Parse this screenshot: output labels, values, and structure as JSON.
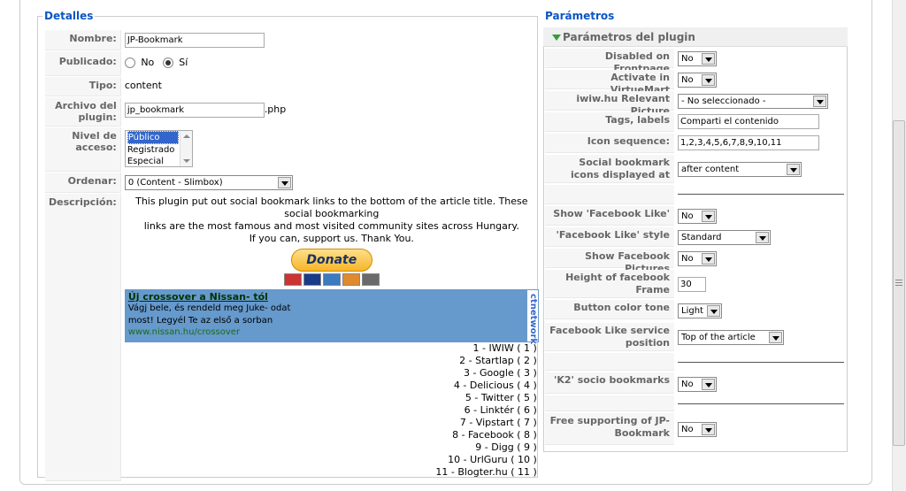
{
  "details": {
    "legend": "Detalles",
    "name_label": "Nombre:",
    "name_value": "JP-Bookmark",
    "published_label": "Publicado:",
    "published_no": "No",
    "published_yes": "Sí",
    "type_label": "Tipo:",
    "type_value": "content",
    "file_label": "Archivo del plugin:",
    "file_value": "jp_bookmark",
    "file_ext": ".php",
    "access_label": "Nivel de acceso:",
    "access_options": [
      "Público",
      "Registrado",
      "Especial"
    ],
    "order_label": "Ordenar:",
    "order_value": "0 (Content - Slimbox)",
    "desc_label": "Descripción:",
    "desc_line1": "This plugin put out social bookmark links to the bottom of the article title. These social bookmarking",
    "desc_line2": "links are the most famous and most visited community sites across Hungary.",
    "desc_line3": "If you can, support us. Thank You.",
    "donate_label": "Donate",
    "ad": {
      "title": "Új crossover a Nissan- tól",
      "line1": "Vágj bele, és rendeld meg Juke- odat",
      "line2": "most! Legyél Te az első a sorban",
      "url": "www.nissan.hu/crossover",
      "side": "ctnetwork"
    },
    "bookmarks": [
      "1 - IWIW ( 1 )",
      "2 - Startlap ( 2 )",
      "3 - Google ( 3 )",
      "4 - Delicious ( 4 )",
      "5 - Twitter ( 5 )",
      "6 - Linktér ( 6 )",
      "7 - Vipstart ( 7 )",
      "8 - Facebook ( 8 )",
      "9 - Digg ( 9 )",
      "10 - UrlGuru ( 10 )",
      "11 - Blogter.hu ( 11 )"
    ]
  },
  "params": {
    "legend": "Parámetros",
    "header": "Parámetros del plugin",
    "disabled_label": "Disabled on Frontpage",
    "disabled_value": "No",
    "vm_label": "Activate in VirtueMart",
    "vm_value": "No",
    "picture_label": "iwiw.hu Relevant Picture",
    "picture_value": "- No seleccionado -",
    "tags_label": "Tags, labels",
    "tags_value": "Comparti el contenido",
    "icon_label": "Icon sequence:",
    "icon_value": "1,2,3,4,5,6,7,8,9,10,11",
    "displayed_label": "Social bookmark icons displayed at",
    "displayed_value": "after content",
    "fb_like_label": "Show 'Facebook Like'",
    "fb_like_value": "No",
    "fb_style_label": "'Facebook Like' style",
    "fb_style_value": "Standard",
    "fb_pics_label": "Show Facebook Pictures",
    "fb_pics_value": "No",
    "fb_height_label": "Height of facebook Frame",
    "fb_height_value": "30",
    "btn_tone_label": "Button color tone",
    "btn_tone_value": "Light",
    "fb_pos_label": "Facebook Like service position",
    "fb_pos_value": "Top of the article",
    "k2_label": "'K2' socio bookmarks",
    "k2_value": "No",
    "free_label": "Free supporting of JP-Bookmark",
    "free_value": "No"
  }
}
